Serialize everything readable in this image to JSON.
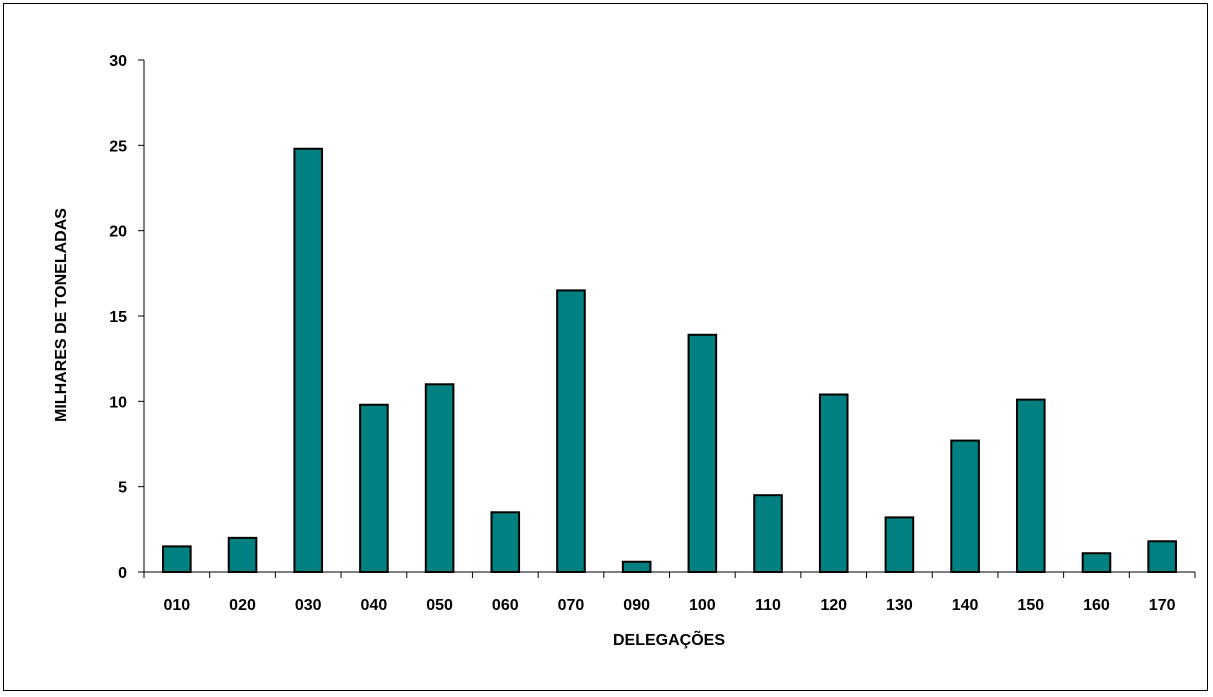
{
  "chart_data": {
    "type": "bar",
    "title": "",
    "xlabel": "DELEGAÇÕES",
    "ylabel": "MILHARES DE TONELADAS",
    "ylim": [
      0,
      30
    ],
    "yticks": [
      0,
      5,
      10,
      15,
      20,
      25,
      30
    ],
    "grid": false,
    "legend": "none",
    "bar_color": "#008080",
    "bar_outline_color": "#000000",
    "categories": [
      "010",
      "020",
      "030",
      "040",
      "050",
      "060",
      "070",
      "090",
      "100",
      "110",
      "120",
      "130",
      "140",
      "150",
      "160",
      "170"
    ],
    "values": [
      1.5,
      2.0,
      24.8,
      9.8,
      11.0,
      3.5,
      16.5,
      0.6,
      13.9,
      4.5,
      10.4,
      3.2,
      7.7,
      10.1,
      1.1,
      1.8
    ]
  }
}
